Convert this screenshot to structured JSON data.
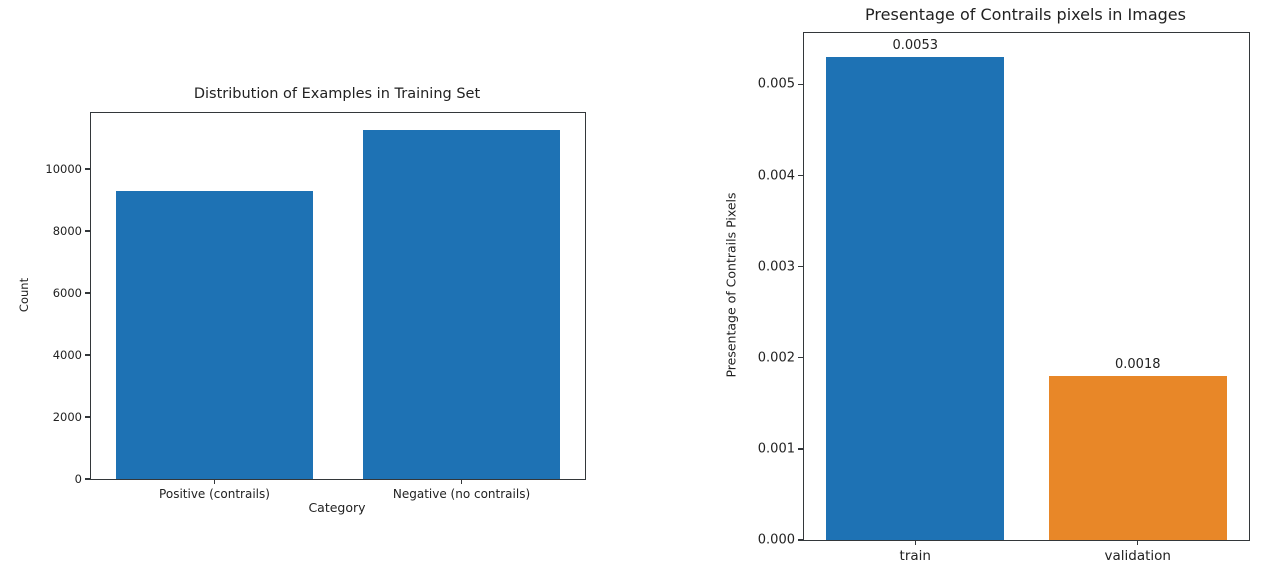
{
  "page": {
    "background": "#ffffff",
    "text_color": "#1f1f1f",
    "axis_color": "#33373a"
  },
  "chart_data": [
    {
      "type": "bar",
      "title": "Distribution of Examples in Training Set",
      "xlabel": "Category",
      "ylabel": "Count",
      "categories": [
        "Positive (contrails)",
        "Negative (no contrails)"
      ],
      "values": [
        9283,
        11246
      ],
      "bar_labels": null,
      "bar_colors": [
        "#1e72b4",
        "#1e72b4"
      ],
      "yticks": [
        0,
        2000,
        4000,
        6000,
        8000,
        10000
      ],
      "ytick_labels": [
        "0",
        "2000",
        "4000",
        "6000",
        "8000",
        "10000"
      ],
      "ylim": [
        0,
        11810
      ],
      "grid": false,
      "legend": false,
      "plot_background": "#ffffff"
    },
    {
      "type": "bar",
      "title": "Presentage of Contrails pixels in Images",
      "xlabel": "",
      "ylabel": "Presentage of Contrails Pixels",
      "categories": [
        "train",
        "validation"
      ],
      "values": [
        0.0053,
        0.0018
      ],
      "bar_labels": [
        "0.0053",
        "0.0018"
      ],
      "bar_colors": [
        "#1e72b4",
        "#e88728"
      ],
      "yticks": [
        0,
        0.001,
        0.002,
        0.003,
        0.004,
        0.005
      ],
      "ytick_labels": [
        "0.000",
        "0.001",
        "0.002",
        "0.003",
        "0.004",
        "0.005"
      ],
      "ylim": [
        0,
        0.005565
      ],
      "grid": false,
      "legend": false,
      "plot_background": "#ffffff"
    }
  ]
}
